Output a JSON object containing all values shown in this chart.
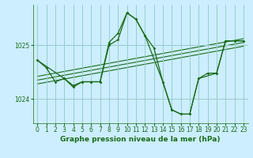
{
  "title": "Graphe pression niveau de la mer (hPa)",
  "background_color": "#cceeff",
  "grid_color": "#99cccc",
  "line_color": "#1a6b1a",
  "xlim": [
    -0.5,
    23.5
  ],
  "ylim": [
    1023.55,
    1025.75
  ],
  "yticks": [
    1024,
    1025
  ],
  "xticks": [
    0,
    1,
    2,
    3,
    4,
    5,
    6,
    7,
    8,
    9,
    10,
    11,
    12,
    13,
    14,
    15,
    16,
    17,
    18,
    19,
    20,
    21,
    22,
    23
  ],
  "series_main": {
    "x": [
      0,
      1,
      2,
      3,
      4,
      5,
      6,
      7,
      8,
      9,
      10,
      11,
      12,
      13,
      14,
      15,
      16,
      17,
      18,
      19,
      20,
      21,
      22,
      23
    ],
    "y": [
      1024.72,
      1024.58,
      1024.32,
      1024.38,
      1024.25,
      1024.32,
      1024.32,
      1024.32,
      1025.0,
      1025.1,
      1025.6,
      1025.48,
      1025.18,
      1024.95,
      1024.32,
      1023.8,
      1023.72,
      1023.72,
      1024.38,
      1024.48,
      1024.48,
      1025.08,
      1025.08,
      1025.08
    ]
  },
  "series_second": {
    "x": [
      0,
      3,
      4,
      5,
      6,
      7,
      8,
      9,
      10,
      11,
      12,
      14,
      15,
      16,
      17,
      18,
      20,
      21,
      22,
      23
    ],
    "y": [
      1024.72,
      1024.38,
      1024.22,
      1024.32,
      1024.32,
      1024.32,
      1025.05,
      1025.22,
      1025.6,
      1025.48,
      1025.18,
      1024.32,
      1023.8,
      1023.72,
      1023.72,
      1024.38,
      1024.48,
      1025.08,
      1025.08,
      1025.08
    ]
  },
  "trend_lines": [
    {
      "x": [
        0,
        23
      ],
      "y": [
        1024.42,
        1025.12
      ]
    },
    {
      "x": [
        0,
        23
      ],
      "y": [
        1024.35,
        1025.05
      ]
    },
    {
      "x": [
        0,
        23
      ],
      "y": [
        1024.28,
        1024.98
      ]
    }
  ],
  "tick_fontsize": 5.5,
  "label_fontsize": 6.5
}
